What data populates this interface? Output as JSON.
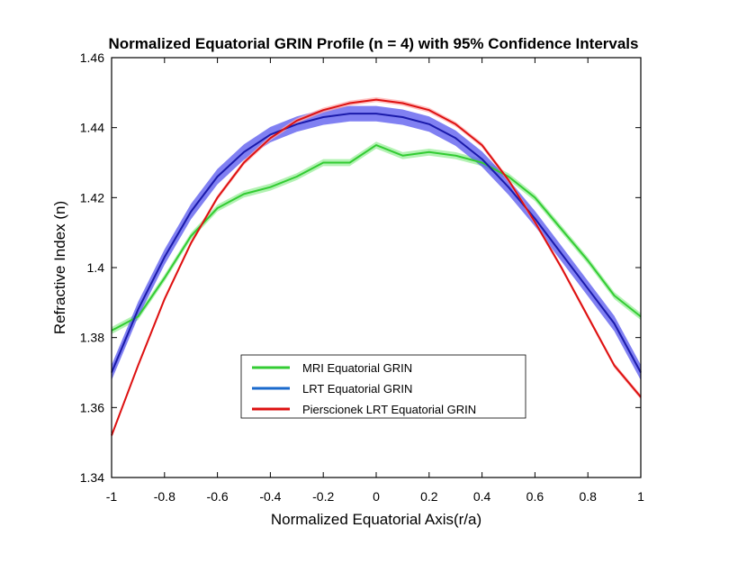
{
  "chart_data": {
    "type": "line",
    "title": "Normalized Equatorial GRIN Profile (n = 4) with 95% Confidence Intervals",
    "xlabel": "Normalized Equatorial Axis(r/a)",
    "ylabel": "Refractive Index (n)",
    "xlim": [
      -1,
      1
    ],
    "ylim": [
      1.34,
      1.46
    ],
    "xticks": [
      -1,
      -0.8,
      -0.6,
      -0.4,
      -0.2,
      0,
      0.2,
      0.4,
      0.6,
      0.8,
      1
    ],
    "xtick_labels": [
      "-1",
      "-0.8",
      "-0.6",
      "-0.4",
      "-0.2",
      "0",
      "0.2",
      "0.4",
      "0.6",
      "0.8",
      "1"
    ],
    "yticks": [
      1.34,
      1.36,
      1.38,
      1.4,
      1.42,
      1.44,
      1.46
    ],
    "ytick_labels": [
      "1.34",
      "1.36",
      "1.38",
      "1.4",
      "1.42",
      "1.44",
      "1.46"
    ],
    "grid": false,
    "legend_position": "bottom-center",
    "x": [
      -1,
      -0.9,
      -0.8,
      -0.7,
      -0.6,
      -0.5,
      -0.4,
      -0.3,
      -0.2,
      -0.1,
      0,
      0.1,
      0.2,
      0.3,
      0.4,
      0.5,
      0.6,
      0.7,
      0.8,
      0.9,
      1
    ],
    "series": [
      {
        "name": "MRI Equatorial GRIN",
        "color": "#33cc33",
        "band_color": "#99ee99",
        "values": [
          1.382,
          1.386,
          1.397,
          1.409,
          1.417,
          1.421,
          1.423,
          1.426,
          1.43,
          1.43,
          1.435,
          1.432,
          1.433,
          1.432,
          1.43,
          1.426,
          1.42,
          1.411,
          1.402,
          1.392,
          1.386
        ],
        "ci": 0.001
      },
      {
        "name": "LRT Equatorial GRIN",
        "color": "#1a1aaa",
        "band_color": "#5555ee",
        "values": [
          1.37,
          1.388,
          1.403,
          1.416,
          1.426,
          1.433,
          1.438,
          1.441,
          1.443,
          1.444,
          1.444,
          1.443,
          1.441,
          1.437,
          1.431,
          1.423,
          1.414,
          1.404,
          1.394,
          1.384,
          1.37
        ],
        "ci": 0.0022
      },
      {
        "name": "Pierscionek LRT Equatorial GRIN",
        "color": "#dd1111",
        "band_color": "#ffaaaa",
        "values": [
          1.352,
          1.372,
          1.391,
          1.407,
          1.42,
          1.43,
          1.437,
          1.442,
          1.445,
          1.447,
          1.448,
          1.447,
          1.445,
          1.441,
          1.435,
          1.425,
          1.413,
          1.4,
          1.386,
          1.372,
          1.363
        ],
        "ci": 0.0007
      }
    ]
  }
}
